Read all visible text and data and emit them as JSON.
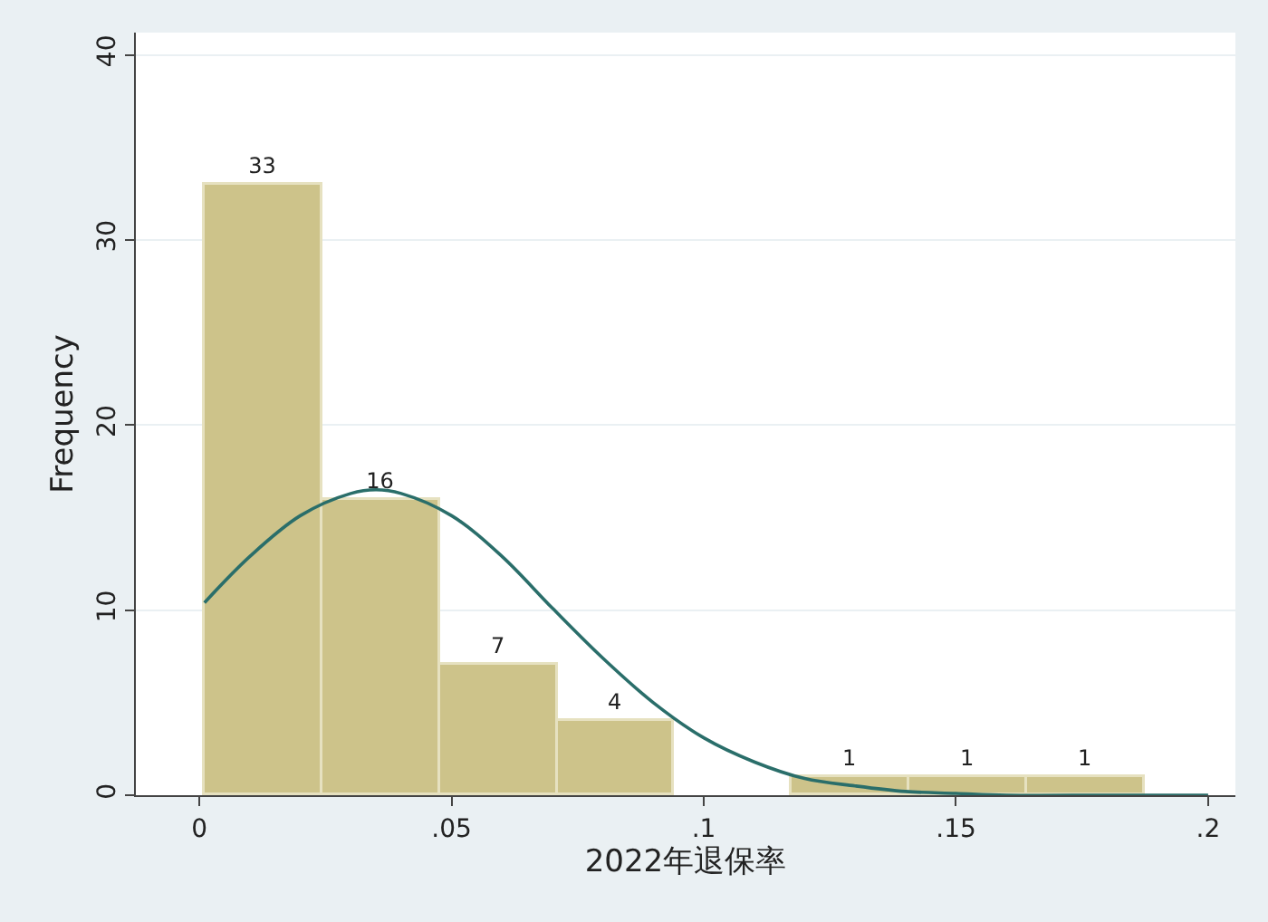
{
  "chart_data": {
    "type": "histogram",
    "xlabel": "2022年退保率",
    "ylabel": "Frequency",
    "bins": [
      0.001,
      0.0243,
      0.0476,
      0.0709,
      0.0942,
      0.1175,
      0.1408,
      0.1641,
      0.1874
    ],
    "values": [
      33,
      16,
      7,
      4,
      0,
      1,
      1,
      1
    ],
    "value_labels": [
      "33",
      "16",
      "7",
      "4",
      null,
      "1",
      "1",
      "1"
    ],
    "color": "#cdc38a",
    "series": [
      {
        "type": "line",
        "color": "#2a6e6a",
        "x": [
          0.001,
          0.01,
          0.02,
          0.03,
          0.035,
          0.04,
          0.05,
          0.06,
          0.07,
          0.08,
          0.09,
          0.1,
          0.11,
          0.12,
          0.13,
          0.14,
          0.15,
          0.16,
          0.18,
          0.2
        ],
        "values": [
          10.4,
          12.9,
          15.1,
          16.3,
          16.5,
          16.3,
          15.1,
          12.9,
          10.1,
          7.4,
          5.0,
          3.1,
          1.8,
          0.9,
          0.5,
          0.2,
          0.1,
          0.0,
          0.0,
          0.0
        ]
      }
    ],
    "xlim": [
      -0.0126,
      0.2054
    ],
    "xticks": [
      0,
      {
        "value": 0.05,
        "label": ".05"
      },
      {
        "value": 0.1,
        "label": ".1"
      },
      {
        "value": 0.15,
        "label": ".15"
      },
      {
        "value": 0.2,
        "label": ".2"
      }
    ],
    "ylim": [
      0,
      41.2
    ],
    "yticks": [
      0,
      10,
      20,
      30,
      40
    ],
    "grid": "y"
  }
}
